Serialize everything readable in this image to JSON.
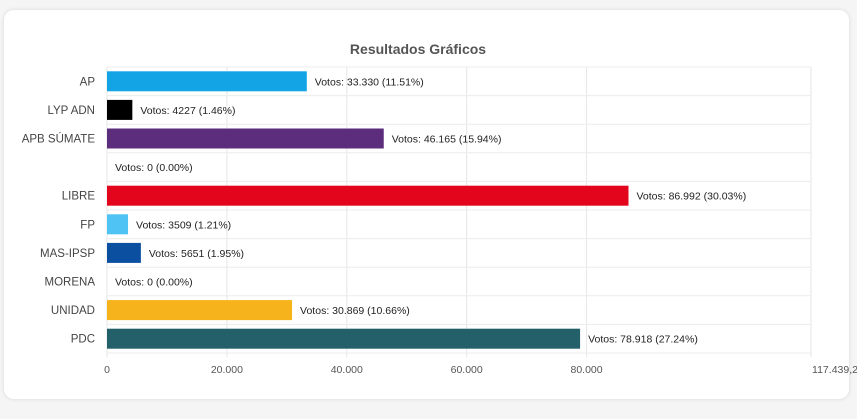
{
  "chart_data": {
    "type": "bar",
    "orientation": "horizontal",
    "title": "Resultados Gráficos",
    "xlabel": "",
    "ylabel": "",
    "grid": true,
    "legend": "none",
    "xlim": [
      0,
      117439.2
    ],
    "categories": [
      "AP",
      "LYP ADN",
      "APB SÚMATE",
      "",
      "LIBRE",
      "FP",
      "MAS-IPSP",
      "MORENA",
      "UNIDAD",
      "PDC"
    ],
    "values": [
      33330,
      4227,
      46165,
      0,
      86992,
      3509,
      5651,
      0,
      30869,
      78918
    ],
    "data_labels": [
      "Votos: 33.330 (11.51%)",
      "Votos: 4227 (1.46%)",
      "Votos: 46.165 (15.94%)",
      "Votos: 0 (0.00%)",
      "Votos: 86.992 (30.03%)",
      "Votos: 3509 (1.21%)",
      "Votos: 5651 (1.95%)",
      "Votos: 0 (0.00%)",
      "Votos: 30.869 (10.66%)",
      "Votos: 78.918 (27.24%)"
    ],
    "colors": [
      "#12a4e4",
      "#000000",
      "#5c2d7c",
      "#cccccc",
      "#e3051b",
      "#4fc4f4",
      "#0a4fa0",
      "#999999",
      "#f7b31b",
      "#23606a"
    ],
    "x_ticks": [
      0,
      20000,
      40000,
      60000,
      80000,
      117439.2
    ],
    "x_tick_labels": [
      "0",
      "20.000",
      "40.000",
      "60.000",
      "80.000",
      "117.439,2"
    ]
  }
}
